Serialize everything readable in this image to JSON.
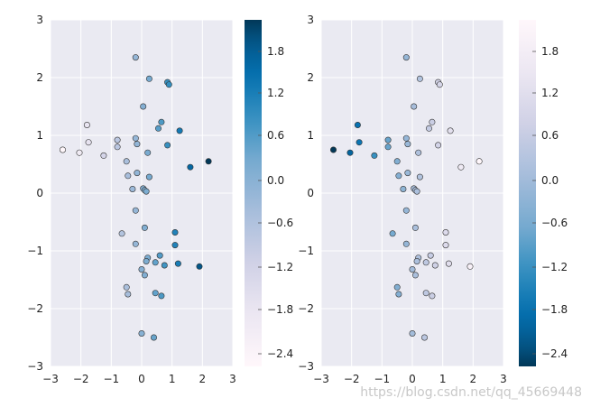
{
  "chart_data": [
    {
      "type": "scatter",
      "title": "",
      "xlabel": "",
      "ylabel": "",
      "xlim": [
        -3,
        3
      ],
      "ylim": [
        -3,
        3
      ],
      "xticks": [
        -3,
        -2,
        -1,
        0,
        1,
        2,
        3
      ],
      "yticks": [
        -3,
        -2,
        -1,
        0,
        1,
        2,
        3
      ],
      "grid": true,
      "colormap": "PuBu",
      "color_by": "x",
      "colorbar": {
        "range": [
          -2.6,
          2.2
        ],
        "ticks": [
          "1.8",
          "1.2",
          "0.6",
          "0.0",
          "−0.6",
          "−1.2",
          "−1.8",
          "−2.4"
        ]
      },
      "points": [
        [
          -0.2,
          2.35
        ],
        [
          0.25,
          1.98
        ],
        [
          0.85,
          1.92
        ],
        [
          0.9,
          1.88
        ],
        [
          0.05,
          1.5
        ],
        [
          0.65,
          1.23
        ],
        [
          0.55,
          1.12
        ],
        [
          1.25,
          1.08
        ],
        [
          -1.8,
          1.18
        ],
        [
          -1.75,
          0.88
        ],
        [
          -2.6,
          0.75
        ],
        [
          -2.05,
          0.7
        ],
        [
          -1.25,
          0.65
        ],
        [
          -0.8,
          0.92
        ],
        [
          -0.8,
          0.8
        ],
        [
          -0.2,
          0.95
        ],
        [
          -0.15,
          0.85
        ],
        [
          0.85,
          0.83
        ],
        [
          0.2,
          0.7
        ],
        [
          -0.5,
          0.55
        ],
        [
          1.6,
          0.45
        ],
        [
          2.2,
          0.55
        ],
        [
          -0.15,
          0.35
        ],
        [
          -0.45,
          0.3
        ],
        [
          0.25,
          0.28
        ],
        [
          -0.3,
          0.07
        ],
        [
          0.05,
          0.08
        ],
        [
          0.1,
          0.05
        ],
        [
          0.15,
          0.03
        ],
        [
          -0.2,
          -0.3
        ],
        [
          0.1,
          -0.6
        ],
        [
          -0.65,
          -0.7
        ],
        [
          1.1,
          -0.68
        ],
        [
          -0.2,
          -0.88
        ],
        [
          1.1,
          -0.9
        ],
        [
          0.6,
          -1.08
        ],
        [
          0.2,
          -1.12
        ],
        [
          0.15,
          -1.18
        ],
        [
          0.45,
          -1.2
        ],
        [
          0.75,
          -1.25
        ],
        [
          1.2,
          -1.22
        ],
        [
          1.9,
          -1.27
        ],
        [
          0.0,
          -1.32
        ],
        [
          0.1,
          -1.42
        ],
        [
          -0.5,
          -1.63
        ],
        [
          -0.45,
          -1.75
        ],
        [
          0.45,
          -1.73
        ],
        [
          0.65,
          -1.78
        ],
        [
          0.0,
          -2.43
        ],
        [
          0.4,
          -2.5
        ]
      ]
    },
    {
      "type": "scatter",
      "title": "",
      "xlabel": "",
      "ylabel": "",
      "xlim": [
        -3,
        3
      ],
      "ylim": [
        -3,
        3
      ],
      "xticks": [
        -3,
        -2,
        -1,
        0,
        1,
        2,
        3
      ],
      "yticks": [
        -3,
        -2,
        -1,
        0,
        1,
        2,
        3
      ],
      "grid": true,
      "colormap": "PuBu_r",
      "color_by": "x",
      "colorbar": {
        "range": [
          -2.6,
          2.2
        ],
        "ticks": [
          "1.8",
          "1.2",
          "0.6",
          "0.0",
          "−0.6",
          "−1.2",
          "−1.8",
          "−2.4"
        ]
      },
      "points": "same as first panel"
    }
  ],
  "watermark": "https://blog.csdn.net/qq_45669448",
  "colors": {
    "axes_bg": "#eaeaf2",
    "grid": "#ffffff",
    "edge": "#333333"
  }
}
